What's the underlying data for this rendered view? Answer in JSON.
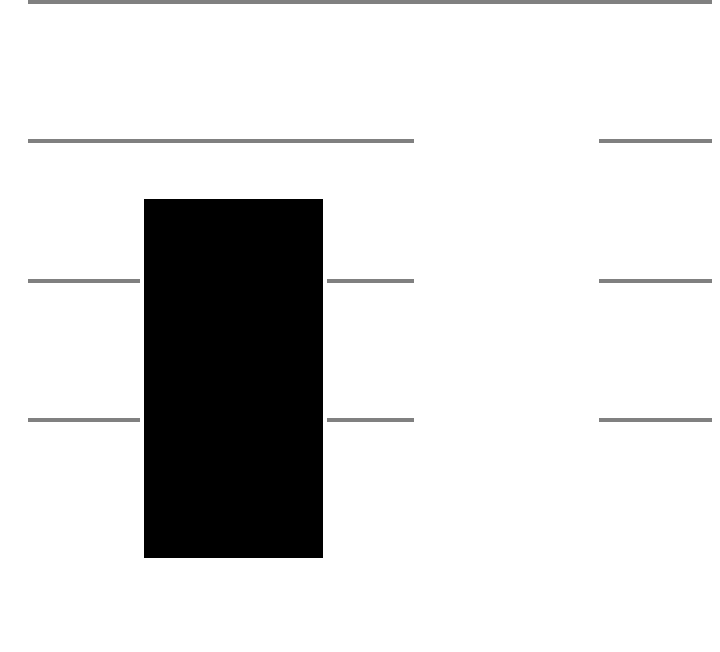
{
  "colors": {
    "background": "#ffffff",
    "line": "#808080",
    "block": "#000000"
  },
  "elements": {
    "top_rule": "horizontal-rule",
    "line_rows": 3,
    "block": "filled-rectangle"
  }
}
